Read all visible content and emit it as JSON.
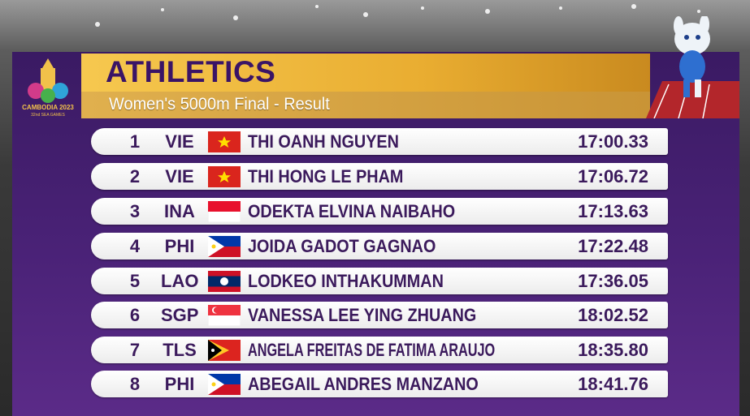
{
  "logo": {
    "title": "CAMBODIA 2023",
    "subtitle": "32nd SEA GAMES"
  },
  "header": {
    "title": "ATHLETICS",
    "subtitle": "Women's 5000m Final - Result"
  },
  "results": [
    {
      "rank": 1,
      "country": "VIE",
      "name": "THI OANH NGUYEN",
      "time": "17:00.33"
    },
    {
      "rank": 2,
      "country": "VIE",
      "name": "THI HONG LE PHAM",
      "time": "17:06.72"
    },
    {
      "rank": 3,
      "country": "INA",
      "name": "ODEKTA ELVINA NAIBAHO",
      "time": "17:13.63"
    },
    {
      "rank": 4,
      "country": "PHI",
      "name": "JOIDA GADOT GAGNAO",
      "time": "17:22.48"
    },
    {
      "rank": 5,
      "country": "LAO",
      "name": "LODKEO INTHAKUMMAN",
      "time": "17:36.05"
    },
    {
      "rank": 6,
      "country": "SGP",
      "name": "VANESSA LEE YING ZHUANG",
      "time": "18:02.52"
    },
    {
      "rank": 7,
      "country": "TLS",
      "name": "ANGELA FREITAS DE FATIMA ARAUJO",
      "time": "18:35.80"
    },
    {
      "rank": 8,
      "country": "PHI",
      "name": "ABEGAIL ANDRES MANZANO",
      "time": "18:41.76"
    }
  ]
}
